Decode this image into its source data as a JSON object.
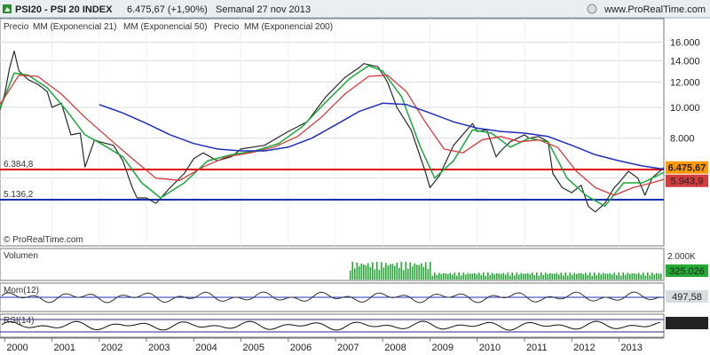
{
  "header": {
    "title": "PSI20 - PSI 20 INDEX",
    "price_change": "6.475,67 (+1,90%)",
    "period": "Semanal  27 nov 2013",
    "site": "www.ProRealTime.com"
  },
  "legend": {
    "series": [
      {
        "label": "Precio",
        "color": "#333333"
      },
      {
        "label": "MM (Exponencial 21)",
        "color": "#19a83a"
      },
      {
        "label": "MM (Exponencial 50)",
        "color": "#d23c3c"
      },
      {
        "label": "Precio",
        "color": "#333333"
      },
      {
        "label": "MM (Exponencial 200)",
        "color": "#1f2fbf"
      }
    ]
  },
  "watermark": "© ProRealTime.com",
  "levels": {
    "upper_label": "6.384,8",
    "lower_label": "5.136,2",
    "upper_value": 6384.8,
    "lower_value": 5136.2
  },
  "badges": {
    "last_price": "6.475,67",
    "ema50_value": "5.943,9",
    "volume_value": "325.026",
    "momentum_value": "497,58",
    "rsi_value": "65,092"
  },
  "panels": {
    "volume_label": "Volumen",
    "volume_axis": "2.000K",
    "momentum_label": "Mom(12)",
    "rsi_label": "RSI(14)"
  },
  "colors": {
    "price": "#2a2a2a",
    "ema21": "#19a83a",
    "ema50": "#d23c3c",
    "ema200": "#1f2fbf",
    "level_upper": "#e00000",
    "level_lower": "#1030b0",
    "volume": "#22aa33",
    "badge_price": "#ff9900",
    "badge_ema50": "#d23c3c",
    "badge_volume": "#22aa33",
    "badge_dark": "#222222"
  },
  "chart_data": {
    "type": "line",
    "title": "PSI20 - PSI 20 INDEX",
    "y_scale": "log",
    "ylim": [
      3800,
      17000
    ],
    "y_ticks": [
      "16.000",
      "14.000",
      "12.000",
      "10.000",
      "8.000",
      "6.000"
    ],
    "y_tick_values": [
      16000,
      14000,
      12000,
      10000,
      8000,
      6000
    ],
    "x_ticks": [
      "2000",
      "2001",
      "2002",
      "2003",
      "2004",
      "2005",
      "2006",
      "2007",
      "2008",
      "2009",
      "2010",
      "2011",
      "2012",
      "2013"
    ],
    "xlim": [
      1999.9,
      2013.95
    ],
    "series": [
      {
        "name": "Precio",
        "x": [
          1999.9,
          2000.0,
          2000.1,
          2000.2,
          2000.3,
          2000.5,
          2000.7,
          2000.9,
          2001.0,
          2001.2,
          2001.4,
          2001.6,
          2001.7,
          2001.9,
          2002.0,
          2002.3,
          2002.5,
          2002.7,
          2002.8,
          2003.0,
          2003.2,
          2003.5,
          2003.8,
          2004.0,
          2004.2,
          2004.5,
          2004.8,
          2005.0,
          2005.5,
          2006.0,
          2006.4,
          2006.8,
          2007.2,
          2007.5,
          2007.6,
          2007.9,
          2008.1,
          2008.3,
          2008.6,
          2008.9,
          2009.0,
          2009.2,
          2009.5,
          2009.9,
          2010.0,
          2010.2,
          2010.4,
          2010.5,
          2010.7,
          2011.0,
          2011.1,
          2011.3,
          2011.5,
          2011.6,
          2011.8,
          2012.0,
          2012.2,
          2012.35,
          2012.5,
          2012.7,
          2012.9,
          2013.0,
          2013.2,
          2013.4,
          2013.55,
          2013.7,
          2013.95
        ],
        "values": [
          9800,
          11000,
          13200,
          15000,
          13000,
          12200,
          11800,
          11200,
          10000,
          10300,
          8200,
          8300,
          6500,
          7900,
          7800,
          7600,
          6800,
          5600,
          5200,
          5200,
          5000,
          5600,
          6200,
          6900,
          7200,
          6800,
          7000,
          7400,
          7600,
          8400,
          9000,
          10800,
          12400,
          13300,
          13700,
          13400,
          12000,
          10000,
          8500,
          6300,
          5600,
          6100,
          7600,
          8900,
          8400,
          8500,
          7000,
          7300,
          7800,
          8200,
          8000,
          8100,
          7800,
          6200,
          5600,
          5400,
          5700,
          4900,
          4700,
          5000,
          5600,
          5800,
          6300,
          6000,
          5300,
          6000,
          6475.67
        ]
      },
      {
        "name": "MM (Exponencial 21)",
        "x": [
          1999.9,
          2000.2,
          2000.5,
          2000.9,
          2001.3,
          2001.7,
          2002.1,
          2002.5,
          2002.9,
          2003.3,
          2003.8,
          2004.3,
          2004.8,
          2005.3,
          2005.8,
          2006.3,
          2006.8,
          2007.3,
          2007.7,
          2008.0,
          2008.4,
          2008.8,
          2009.1,
          2009.5,
          2009.9,
          2010.3,
          2010.7,
          2011.1,
          2011.5,
          2011.9,
          2012.3,
          2012.7,
          2013.1,
          2013.5,
          2013.95
        ],
        "values": [
          9900,
          12800,
          12600,
          11500,
          9800,
          8200,
          7600,
          7000,
          5800,
          5200,
          5800,
          6800,
          7100,
          7300,
          7700,
          8700,
          10400,
          12300,
          13500,
          13000,
          10800,
          7500,
          6000,
          6800,
          8500,
          8300,
          7500,
          8000,
          7800,
          6000,
          5300,
          4900,
          5800,
          5800,
          6250
        ]
      },
      {
        "name": "MM (Exponencial 50)",
        "x": [
          1999.9,
          2000.3,
          2000.7,
          2001.2,
          2001.7,
          2002.2,
          2002.7,
          2003.2,
          2003.7,
          2004.2,
          2004.7,
          2005.2,
          2005.7,
          2006.2,
          2006.7,
          2007.2,
          2007.7,
          2008.1,
          2008.5,
          2008.9,
          2009.3,
          2009.7,
          2010.1,
          2010.5,
          2010.9,
          2011.3,
          2011.7,
          2012.1,
          2012.5,
          2012.9,
          2013.3,
          2013.7,
          2013.95
        ],
        "values": [
          10200,
          12600,
          12500,
          11000,
          9300,
          8000,
          6900,
          6000,
          5900,
          6500,
          7000,
          7200,
          7500,
          8100,
          9300,
          11000,
          12500,
          12600,
          11200,
          9000,
          7400,
          7200,
          7900,
          8100,
          7800,
          7900,
          7500,
          6300,
          5600,
          5300,
          5600,
          5800,
          5943.9
        ]
      },
      {
        "name": "MM (Exponencial 200)",
        "x": [
          2002.0,
          2002.5,
          2003.0,
          2003.5,
          2004.0,
          2004.5,
          2005.0,
          2005.5,
          2006.0,
          2006.5,
          2007.0,
          2007.5,
          2008.0,
          2008.5,
          2009.0,
          2009.5,
          2010.0,
          2010.5,
          2011.0,
          2011.5,
          2012.0,
          2012.5,
          2013.0,
          2013.5,
          2013.95
        ],
        "values": [
          10200,
          9600,
          8900,
          8200,
          7700,
          7400,
          7300,
          7300,
          7500,
          8000,
          8800,
          9700,
          10300,
          10200,
          9600,
          9000,
          8600,
          8400,
          8300,
          8100,
          7600,
          7100,
          6800,
          6550,
          6400
        ]
      }
    ]
  }
}
